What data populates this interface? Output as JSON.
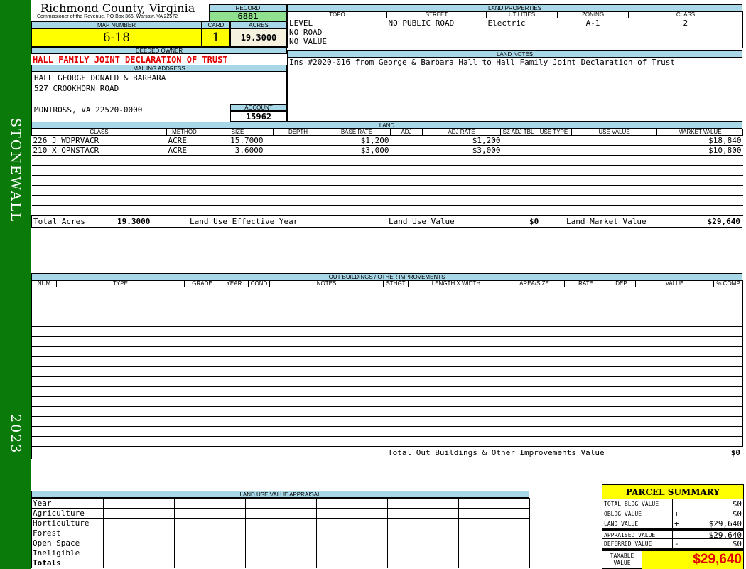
{
  "sidebar": {
    "district": "STONEWALL",
    "year": "2023",
    "color": "#0a7a0a"
  },
  "header": {
    "county": "Richmond County, Virginia",
    "subtitle": "Commissioner of the Revenue, PO Box 366, Warsaw, VA 22572",
    "record_label": "RECORD",
    "record": "6881",
    "map_label": "MAP NUMBER",
    "map": "6-18",
    "card_label": "CARD",
    "card": "1",
    "acres_label": "ACRES",
    "acres": "19.3000"
  },
  "owner": {
    "label": "DEEDED OWNER",
    "name": "HALL FAMILY JOINT DECLARATION OF TRUST",
    "mail_label": "MAILING ADDRESS",
    "line1": "HALL GEORGE DONALD & BARBARA",
    "line2": "527 CROOKHORN ROAD",
    "line3": "MONTROSS, VA 22520-0000",
    "account_label": "ACCOUNT",
    "account": "15962"
  },
  "land_properties": {
    "label": "LAND PROPERTIES",
    "columns": [
      "TOPO",
      "STREET",
      "UTILITIES",
      "ZONING",
      "CLASS"
    ],
    "topo": [
      "LEVEL",
      "NO ROAD",
      "NO VALUE"
    ],
    "street": "NO PUBLIC ROAD",
    "utilities": "Electric",
    "zoning": "A-1",
    "class": "2"
  },
  "land_notes": {
    "label": "LAND NOTES",
    "text": "Ins #2020-016 from George & Barbara Hall to Hall Family Joint Declaration of Trust"
  },
  "land": {
    "label": "LAND",
    "columns": [
      "CLASS",
      "METHOD",
      "SIZE",
      "DEPTH",
      "BASE RATE",
      "ADJ",
      "ADJ RATE",
      "SZ ADJ TBL",
      "USE TYPE",
      "USE VALUE",
      "MARKET VALUE"
    ],
    "rows": [
      [
        "226 J WDPRVACR",
        "ACRE",
        "15.7000",
        "",
        "$1,200",
        "",
        "$1,200",
        "",
        "",
        "",
        "$18,840"
      ],
      [
        "210 X OPNSTACR",
        "ACRE",
        "3.6000",
        "",
        "$3,000",
        "",
        "$3,000",
        "",
        "",
        "",
        "$10,800"
      ]
    ],
    "total_acres_label": "Total Acres",
    "total_acres": "19.3000",
    "use_year_label": "Land Use Effective Year",
    "use_value_label": "Land Use Value",
    "use_value": "$0",
    "market_label": "Land Market Value",
    "market": "$29,640"
  },
  "outbuildings": {
    "label": "OUT BUILDINGS / OTHER IMPROVEMENTS",
    "columns": [
      "NUM",
      "TYPE",
      "GRADE",
      "YEAR",
      "COND",
      "NOTES",
      "STHGT",
      "LENGTH X WIDTH",
      "AREA/SIZE",
      "RATE",
      "DEP",
      "VALUE",
      "% COMP"
    ],
    "total_label": "Total Out Buildings & Other Improvements Value",
    "total": "$0"
  },
  "land_use": {
    "label": "LAND USE VALUE APPRAISAL",
    "year_label": "Year",
    "rows": [
      "Agriculture",
      "Horticulture",
      "Forest",
      "Open Space",
      "Ineligible"
    ],
    "totals_label": "Totals"
  },
  "summary": {
    "title": "PARCEL SUMMARY",
    "rows": [
      {
        "label": "TOTAL BLDG VALUE",
        "op": "",
        "value": "$0"
      },
      {
        "label": "OBLDG VALUE",
        "op": "+",
        "value": "$0"
      },
      {
        "label": "LAND VALUE",
        "op": "+",
        "value": "$29,640"
      },
      {
        "label": "APPRAISED VALUE",
        "op": "",
        "value": "$29,640"
      },
      {
        "label": "DEFERRED VALUE",
        "op": "-",
        "value": "$0"
      }
    ],
    "taxable_label": "TAXABLE VALUE",
    "taxable": "$29,640"
  }
}
